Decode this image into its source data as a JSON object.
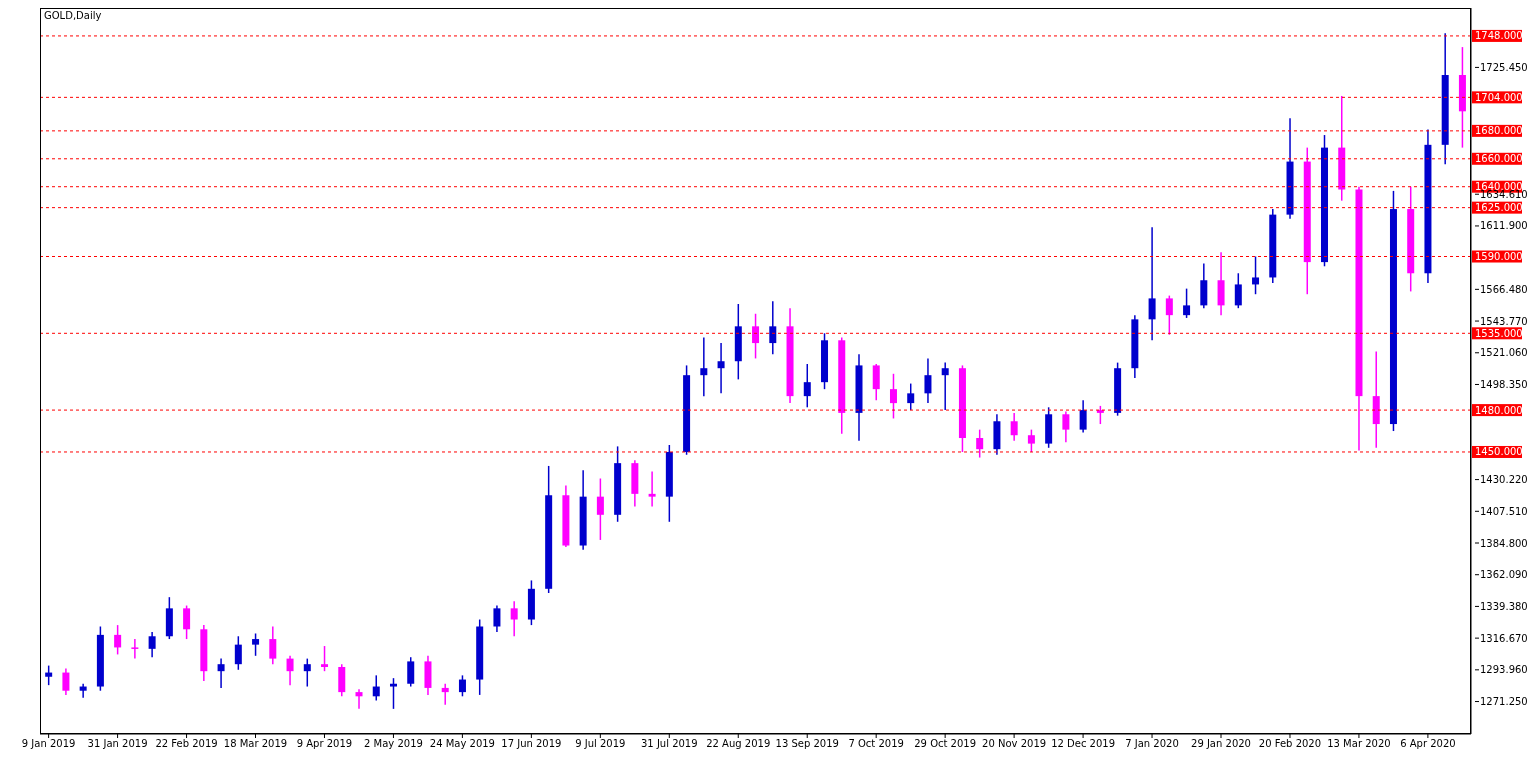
{
  "chart_data": {
    "type": "candlestick",
    "title": "GOLD,Daily",
    "categories": [
      "9 Jan 2019",
      null,
      null,
      null,
      "31 Jan 2019",
      null,
      null,
      null,
      "22 Feb 2019",
      null,
      null,
      null,
      "18 Mar 2019",
      null,
      null,
      null,
      "9 Apr 2019",
      null,
      null,
      null,
      "2 May 2019",
      null,
      null,
      null,
      "24 May 2019",
      null,
      null,
      null,
      "17 Jun 2019",
      null,
      null,
      null,
      "9 Jul 2019",
      null,
      null,
      null,
      "31 Jul 2019",
      null,
      null,
      null,
      "22 Aug 2019",
      null,
      null,
      null,
      "13 Sep 2019",
      null,
      null,
      null,
      "7 Oct 2019",
      null,
      null,
      null,
      "29 Oct 2019",
      null,
      null,
      null,
      "20 Nov 2019",
      null,
      null,
      null,
      "12 Dec 2019",
      null,
      null,
      null,
      "7 Jan 2020",
      null,
      null,
      null,
      "29 Jan 2020",
      null,
      null,
      null,
      "20 Feb 2020",
      null,
      null,
      null,
      "13 Mar 2020",
      null,
      null,
      null,
      "6 Apr 2020",
      null,
      null
    ],
    "ohlc": [
      [
        1289,
        1297,
        1283,
        1292
      ],
      [
        1292,
        1295,
        1276,
        1279
      ],
      [
        1279,
        1284,
        1274,
        1282
      ],
      [
        1282,
        1325,
        1279,
        1319
      ],
      [
        1319,
        1326,
        1305,
        1310
      ],
      [
        1310,
        1316,
        1302,
        1309
      ],
      [
        1309,
        1321,
        1303,
        1318
      ],
      [
        1318,
        1346,
        1316,
        1338
      ],
      [
        1338,
        1340,
        1316,
        1323
      ],
      [
        1323,
        1326,
        1286,
        1293
      ],
      [
        1293,
        1302,
        1281,
        1298
      ],
      [
        1298,
        1318,
        1294,
        1312
      ],
      [
        1312,
        1320,
        1304,
        1316
      ],
      [
        1316,
        1325,
        1298,
        1302
      ],
      [
        1302,
        1304,
        1283,
        1293
      ],
      [
        1293,
        1302,
        1282,
        1298
      ],
      [
        1298,
        1311,
        1293,
        1296
      ],
      [
        1296,
        1298,
        1275,
        1278
      ],
      [
        1278,
        1280,
        1266,
        1275
      ],
      [
        1275,
        1290,
        1272,
        1282
      ],
      [
        1282,
        1288,
        1266,
        1284
      ],
      [
        1284,
        1303,
        1282,
        1300
      ],
      [
        1300,
        1304,
        1276,
        1281
      ],
      [
        1281,
        1284,
        1269,
        1278
      ],
      [
        1278,
        1290,
        1275,
        1287
      ],
      [
        1287,
        1330,
        1276,
        1325
      ],
      [
        1325,
        1340,
        1321,
        1338
      ],
      [
        1338,
        1343,
        1318,
        1330
      ],
      [
        1330,
        1358,
        1326,
        1352
      ],
      [
        1352,
        1440,
        1349,
        1419
      ],
      [
        1419,
        1426,
        1382,
        1383
      ],
      [
        1383,
        1437,
        1380,
        1418
      ],
      [
        1418,
        1431,
        1387,
        1405
      ],
      [
        1405,
        1454,
        1400,
        1442
      ],
      [
        1442,
        1444,
        1411,
        1420
      ],
      [
        1420,
        1436,
        1411,
        1418
      ],
      [
        1418,
        1455,
        1400,
        1450
      ],
      [
        1450,
        1512,
        1448,
        1505
      ],
      [
        1505,
        1532,
        1490,
        1510
      ],
      [
        1510,
        1528,
        1492,
        1515
      ],
      [
        1515,
        1556,
        1502,
        1540
      ],
      [
        1540,
        1549,
        1517,
        1528
      ],
      [
        1528,
        1558,
        1520,
        1540
      ],
      [
        1540,
        1553,
        1485,
        1490
      ],
      [
        1490,
        1513,
        1482,
        1500
      ],
      [
        1500,
        1535,
        1495,
        1530
      ],
      [
        1530,
        1532,
        1463,
        1478
      ],
      [
        1478,
        1520,
        1458,
        1512
      ],
      [
        1512,
        1513,
        1487,
        1495
      ],
      [
        1495,
        1506,
        1474,
        1485
      ],
      [
        1485,
        1499,
        1480,
        1492
      ],
      [
        1492,
        1517,
        1485,
        1505
      ],
      [
        1505,
        1514,
        1480,
        1510
      ],
      [
        1510,
        1512,
        1450,
        1460
      ],
      [
        1460,
        1466,
        1446,
        1452
      ],
      [
        1452,
        1477,
        1448,
        1472
      ],
      [
        1472,
        1478,
        1458,
        1462
      ],
      [
        1462,
        1466,
        1450,
        1456
      ],
      [
        1456,
        1482,
        1453,
        1477
      ],
      [
        1477,
        1479,
        1457,
        1466
      ],
      [
        1466,
        1487,
        1464,
        1480
      ],
      [
        1480,
        1483,
        1470,
        1478
      ],
      [
        1478,
        1514,
        1476,
        1510
      ],
      [
        1510,
        1548,
        1503,
        1545
      ],
      [
        1545,
        1611,
        1530,
        1560
      ],
      [
        1560,
        1562,
        1534,
        1548
      ],
      [
        1548,
        1567,
        1546,
        1555
      ],
      [
        1555,
        1585,
        1553,
        1573
      ],
      [
        1573,
        1593,
        1548,
        1555
      ],
      [
        1555,
        1578,
        1553,
        1570
      ],
      [
        1570,
        1590,
        1563,
        1575
      ],
      [
        1575,
        1624,
        1571,
        1620
      ],
      [
        1620,
        1689,
        1617,
        1658
      ],
      [
        1658,
        1668,
        1563,
        1586
      ],
      [
        1586,
        1677,
        1583,
        1668
      ],
      [
        1668,
        1705,
        1630,
        1638
      ],
      [
        1638,
        1640,
        1451,
        1490
      ],
      [
        1490,
        1522,
        1453,
        1470
      ],
      [
        1470,
        1637,
        1465,
        1624
      ],
      [
        1624,
        1640,
        1565,
        1578
      ],
      [
        1578,
        1681,
        1571,
        1670
      ],
      [
        1670,
        1750,
        1656,
        1720
      ],
      [
        1720,
        1740,
        1668,
        1694
      ]
    ],
    "colors": [
      "#0000cd",
      "#ff00ff",
      "#0000cd",
      "#0000cd",
      "#ff00ff",
      "#ff00ff",
      "#0000cd",
      "#0000cd",
      "#ff00ff",
      "#ff00ff",
      "#0000cd",
      "#0000cd",
      "#0000cd",
      "#ff00ff",
      "#ff00ff",
      "#0000cd",
      "#ff00ff",
      "#ff00ff",
      "#ff00ff",
      "#0000cd",
      "#0000cd",
      "#0000cd",
      "#ff00ff",
      "#ff00ff",
      "#0000cd",
      "#0000cd",
      "#0000cd",
      "#ff00ff",
      "#0000cd",
      "#0000cd",
      "#ff00ff",
      "#0000cd",
      "#ff00ff",
      "#0000cd",
      "#ff00ff",
      "#ff00ff",
      "#0000cd",
      "#0000cd",
      "#0000cd",
      "#0000cd",
      "#0000cd",
      "#ff00ff",
      "#0000cd",
      "#ff00ff",
      "#0000cd",
      "#0000cd",
      "#ff00ff",
      "#0000cd",
      "#ff00ff",
      "#ff00ff",
      "#0000cd",
      "#0000cd",
      "#0000cd",
      "#ff00ff",
      "#ff00ff",
      "#0000cd",
      "#ff00ff",
      "#ff00ff",
      "#0000cd",
      "#ff00ff",
      "#0000cd",
      "#ff00ff",
      "#0000cd",
      "#0000cd",
      "#0000cd",
      "#ff00ff",
      "#0000cd",
      "#0000cd",
      "#ff00ff",
      "#0000cd",
      "#0000cd",
      "#0000cd",
      "#0000cd",
      "#ff00ff",
      "#0000cd",
      "#ff00ff",
      "#ff00ff",
      "#ff00ff",
      "#0000cd",
      "#ff00ff",
      "#0000cd",
      "#0000cd",
      "#ff00ff"
    ],
    "ylim": [
      1248,
      1768
    ],
    "yticks": [
      {
        "value": 1271.25,
        "label": "1271.250"
      },
      {
        "value": 1293.96,
        "label": "1293.960"
      },
      {
        "value": 1316.67,
        "label": "1316.670"
      },
      {
        "value": 1339.38,
        "label": "1339.380"
      },
      {
        "value": 1362.09,
        "label": "1362.090"
      },
      {
        "value": 1384.8,
        "label": "1384.800"
      },
      {
        "value": 1407.51,
        "label": "1407.510"
      },
      {
        "value": 1430.22,
        "label": "1430.220"
      },
      {
        "value": 1498.35,
        "label": "1498.350"
      },
      {
        "value": 1521.06,
        "label": "1521.060"
      },
      {
        "value": 1543.77,
        "label": "1543.770"
      },
      {
        "value": 1566.48,
        "label": "1566.480"
      },
      {
        "value": 1611.9,
        "label": "1611.900"
      },
      {
        "value": 1634.61,
        "label": "1634.610"
      },
      {
        "value": 1725.45,
        "label": "1725.450"
      }
    ],
    "ref_lines": [
      {
        "axis": "y",
        "value": 1748,
        "label": "1748.000",
        "color": "#ff0000",
        "line_style": "dashed"
      },
      {
        "axis": "y",
        "value": 1704,
        "label": "1704.000",
        "color": "#ff0000",
        "line_style": "dashed"
      },
      {
        "axis": "y",
        "value": 1680,
        "label": "1680.000",
        "color": "#ff0000",
        "line_style": "dashed"
      },
      {
        "axis": "y",
        "value": 1660,
        "label": "1660.000",
        "color": "#ff0000",
        "line_style": "dashed"
      },
      {
        "axis": "y",
        "value": 1640,
        "label": "1640.000",
        "color": "#ff0000",
        "line_style": "dashed"
      },
      {
        "axis": "y",
        "value": 1625,
        "label": "1625.000",
        "color": "#ff0000",
        "line_style": "dashed"
      },
      {
        "axis": "y",
        "value": 1590,
        "label": "1590.000",
        "color": "#ff0000",
        "line_style": "dashed"
      },
      {
        "axis": "y",
        "value": 1535,
        "label": "1535.000",
        "color": "#ff0000",
        "line_style": "dashed"
      },
      {
        "axis": "y",
        "value": 1480,
        "label": "1480.000",
        "color": "#ff0000",
        "line_style": "dashed"
      },
      {
        "axis": "y",
        "value": 1450,
        "label": "1450.000",
        "color": "#ff0000",
        "line_style": "dashed"
      }
    ],
    "grid": false,
    "legend": false
  }
}
